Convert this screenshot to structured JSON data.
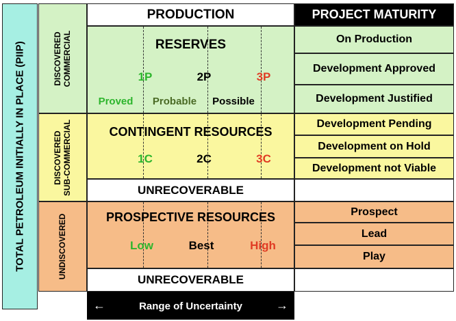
{
  "total": {
    "label": "TOTAL PETROLEUM INITIALLY IN PLACE (PIIP)"
  },
  "sides": {
    "discovered_commercial": [
      "DISCOVERED",
      "COMMERCIAL"
    ],
    "discovered_subcommercial": [
      "DISCOVERED",
      "SUB-COMMERCIAL"
    ],
    "undiscovered": "UNDISCOVERED"
  },
  "headers": {
    "production": "PRODUCTION",
    "project_maturity": "PROJECT MATURITY"
  },
  "reserves": {
    "title": "RESERVES",
    "levels": [
      "1P",
      "2P",
      "3P"
    ],
    "classes": [
      "Proved",
      "Probable",
      "Possible"
    ]
  },
  "contingent": {
    "title": "CONTINGENT RESOURCES",
    "levels": [
      "1C",
      "2C",
      "3C"
    ]
  },
  "unrecoverable_1": "UNRECOVERABLE",
  "prospective": {
    "title": "PROSPECTIVE RESOURCES",
    "levels": [
      "Low",
      "Best",
      "High"
    ]
  },
  "unrecoverable_2": "UNRECOVERABLE",
  "range": {
    "label": "Range of Uncertainty",
    "left_arrow": "←",
    "right_arrow": "→"
  },
  "maturity": {
    "commercial": [
      "On Production",
      "Development Approved",
      "Development Justified"
    ],
    "subcommercial": [
      "Development Pending",
      "Development on Hold",
      "Development not Viable"
    ],
    "undiscovered": [
      "Prospect",
      "Lead",
      "Play"
    ]
  },
  "colors": {
    "cyan": "#a6efe3",
    "green": "#d4f2c5",
    "yellow": "#faf79f",
    "orange": "#f6bc88",
    "header_bg": "#000000",
    "level_green": "#2db52d",
    "level_red": "#e03b24"
  }
}
